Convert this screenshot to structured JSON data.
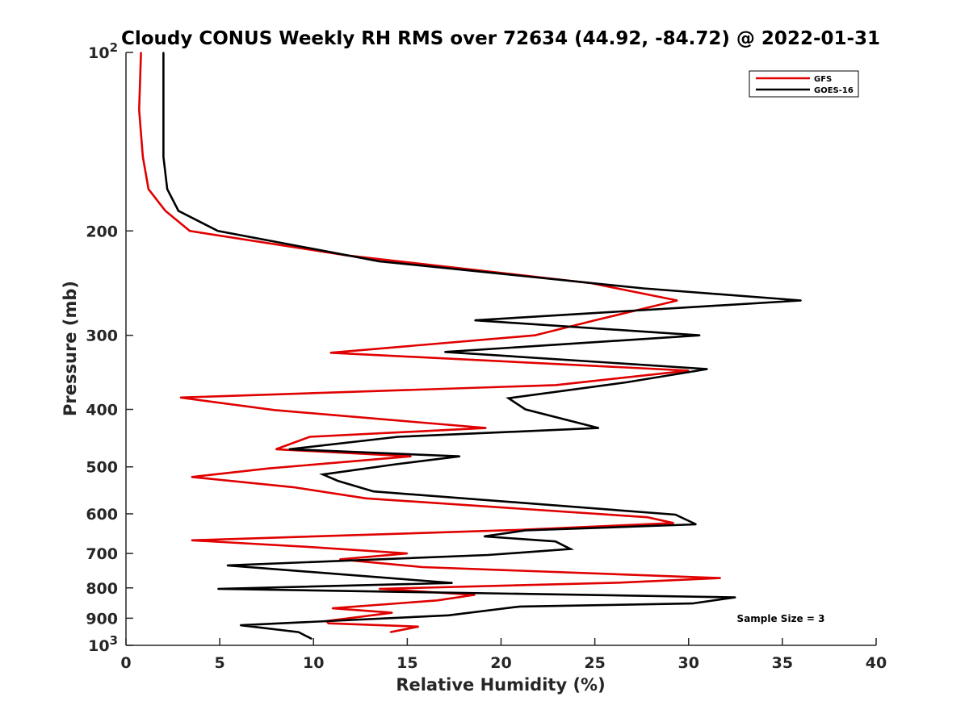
{
  "chart_data": {
    "type": "line",
    "title": "Cloudy CONUS Weekly RH RMS over 72634 (44.92, -84.72) @ 2022-01-31",
    "xlabel": "Relative Humidity (%)",
    "ylabel": "Pressure (mb)",
    "xlim": [
      0,
      40
    ],
    "ylim": [
      100,
      1000
    ],
    "y_scale": "log",
    "y_reversed": true,
    "grid": false,
    "legend_position": "top-right",
    "x_ticks": [
      {
        "value": 0,
        "label": "0"
      },
      {
        "value": 5,
        "label": "5"
      },
      {
        "value": 10,
        "label": "10"
      },
      {
        "value": 15,
        "label": "15"
      },
      {
        "value": 20,
        "label": "20"
      },
      {
        "value": 25,
        "label": "25"
      },
      {
        "value": 30,
        "label": "30"
      },
      {
        "value": 35,
        "label": "35"
      },
      {
        "value": 40,
        "label": "40"
      }
    ],
    "y_ticks": [
      {
        "value": 100,
        "label": "10",
        "sup": "2"
      },
      {
        "value": 200,
        "label": "200",
        "sup": ""
      },
      {
        "value": 300,
        "label": "300",
        "sup": ""
      },
      {
        "value": 400,
        "label": "400",
        "sup": ""
      },
      {
        "value": 500,
        "label": "500",
        "sup": ""
      },
      {
        "value": 600,
        "label": "600",
        "sup": ""
      },
      {
        "value": 700,
        "label": "700",
        "sup": ""
      },
      {
        "value": 800,
        "label": "800",
        "sup": ""
      },
      {
        "value": 900,
        "label": "900",
        "sup": ""
      },
      {
        "value": 1000,
        "label": "10",
        "sup": "3"
      }
    ],
    "annotation": "Sample Size = 3",
    "series": [
      {
        "name": "GFS",
        "color": "#e00000",
        "points": [
          [
            0.8,
            100
          ],
          [
            0.7,
            125
          ],
          [
            0.9,
            150
          ],
          [
            1.2,
            170
          ],
          [
            2.1,
            185
          ],
          [
            3.4,
            200
          ],
          [
            11.8,
            220
          ],
          [
            24.8,
            245
          ],
          [
            29.4,
            262
          ],
          [
            25.0,
            283
          ],
          [
            21.8,
            300
          ],
          [
            10.9,
            321
          ],
          [
            30.0,
            344
          ],
          [
            22.9,
            364
          ],
          [
            2.9,
            382
          ],
          [
            7.9,
            401
          ],
          [
            19.2,
            430
          ],
          [
            9.8,
            445
          ],
          [
            8.0,
            467
          ],
          [
            15.2,
            480
          ],
          [
            7.6,
            503
          ],
          [
            3.5,
            520
          ],
          [
            8.9,
            541
          ],
          [
            12.8,
            565
          ],
          [
            27.8,
            608
          ],
          [
            29.2,
            622
          ],
          [
            20.8,
            639
          ],
          [
            3.5,
            665
          ],
          [
            9.6,
            682
          ],
          [
            15.0,
            700
          ],
          [
            11.4,
            716
          ],
          [
            15.8,
            738
          ],
          [
            31.7,
            770
          ],
          [
            26.3,
            784
          ],
          [
            13.5,
            803
          ],
          [
            18.6,
            822
          ],
          [
            16.6,
            840
          ],
          [
            11.0,
            866
          ],
          [
            14.2,
            881
          ],
          [
            10.7,
            910
          ],
          [
            10.8,
            918
          ],
          [
            15.6,
            930
          ],
          [
            14.1,
            950
          ]
        ]
      },
      {
        "name": "GOES-16",
        "color": "#000000",
        "points": [
          [
            2.0,
            100
          ],
          [
            2.0,
            125
          ],
          [
            2.0,
            150
          ],
          [
            2.2,
            170
          ],
          [
            2.8,
            185
          ],
          [
            4.9,
            200
          ],
          [
            13.5,
            225
          ],
          [
            27.6,
            250
          ],
          [
            36.0,
            262
          ],
          [
            18.6,
            283
          ],
          [
            30.6,
            300
          ],
          [
            17.0,
            320
          ],
          [
            31.0,
            342
          ],
          [
            26.7,
            360
          ],
          [
            20.4,
            383
          ],
          [
            21.3,
            400
          ],
          [
            25.2,
            430
          ],
          [
            14.5,
            445
          ],
          [
            8.7,
            467
          ],
          [
            17.8,
            480
          ],
          [
            14.4,
            495
          ],
          [
            10.5,
            515
          ],
          [
            11.3,
            528
          ],
          [
            13.2,
            550
          ],
          [
            29.3,
            602
          ],
          [
            30.4,
            625
          ],
          [
            21.3,
            640
          ],
          [
            19.1,
            655
          ],
          [
            22.9,
            668
          ],
          [
            23.7,
            688
          ],
          [
            19.3,
            704
          ],
          [
            5.4,
            733
          ],
          [
            17.4,
            785
          ],
          [
            4.9,
            803
          ],
          [
            32.5,
            830
          ],
          [
            30.2,
            850
          ],
          [
            21.0,
            860
          ],
          [
            17.2,
            890
          ],
          [
            6.1,
            925
          ],
          [
            9.2,
            950
          ],
          [
            9.9,
            975
          ]
        ]
      }
    ]
  }
}
